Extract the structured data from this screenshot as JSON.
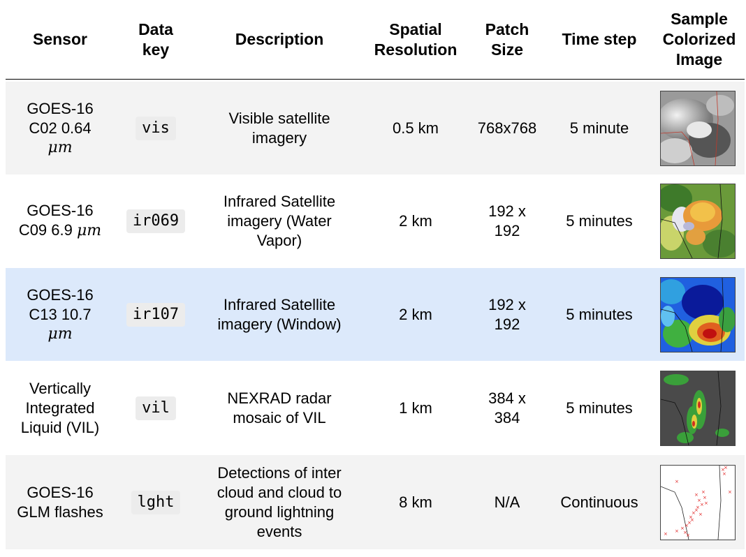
{
  "header": {
    "sensor": "Sensor",
    "data_key_1": "Data",
    "data_key_2": "key",
    "description": "Description",
    "spatial_1": "Spatial",
    "spatial_2": "Resolution",
    "patch_1": "Patch",
    "patch_2": "Size",
    "time_step": "Time step",
    "sample_1": "Sample",
    "sample_2": "Colorized",
    "sample_3": "Image"
  },
  "rows": [
    {
      "sensor_1": "GOES-16",
      "sensor_2": "C02 0.64",
      "sensor_3": "μm",
      "key": "vis",
      "desc_1": "Visible satellite",
      "desc_2": "imagery",
      "resolution": "0.5 km",
      "patch": "768x768",
      "time": "5 minute"
    },
    {
      "sensor_1": "GOES-16",
      "sensor_2": "C09 6.9",
      "sensor_3": "μm",
      "key": "ir069",
      "desc_1": "Infrared Satellite",
      "desc_2": "imagery (Water",
      "desc_3": "Vapor)",
      "patch_1": "192 x",
      "patch_2": "192",
      "resolution": "2 km",
      "time": "5 minutes"
    },
    {
      "sensor_1": "GOES-16",
      "sensor_2": "C13 10.7",
      "sensor_3": "μm",
      "key": "ir107",
      "desc_1": "Infrared Satellite",
      "desc_2": "imagery (Window)",
      "resolution": "2 km",
      "patch_1": "192 x",
      "patch_2": "192",
      "time": "5 minutes"
    },
    {
      "sensor_1": "Vertically",
      "sensor_2": "Integrated",
      "sensor_3": "Liquid (VIL)",
      "key": "vil",
      "desc_1": "NEXRAD radar",
      "desc_2": "mosaic of VIL",
      "resolution": "1 km",
      "patch_1": "384 x",
      "patch_2": "384",
      "time": "5 minutes"
    },
    {
      "sensor_1": "GOES-16",
      "sensor_2": "GLM flashes",
      "key": "lght",
      "desc_1": "Detections of inter",
      "desc_2": "cloud and cloud to",
      "desc_3": "ground lightning",
      "desc_4": "events",
      "resolution": "8 km",
      "patch": "N/A",
      "time": "Continuous"
    }
  ],
  "colors": {
    "row_gray": "#f3f3f3",
    "row_blue": "#dce9fb",
    "code_bg": "#ececec"
  }
}
